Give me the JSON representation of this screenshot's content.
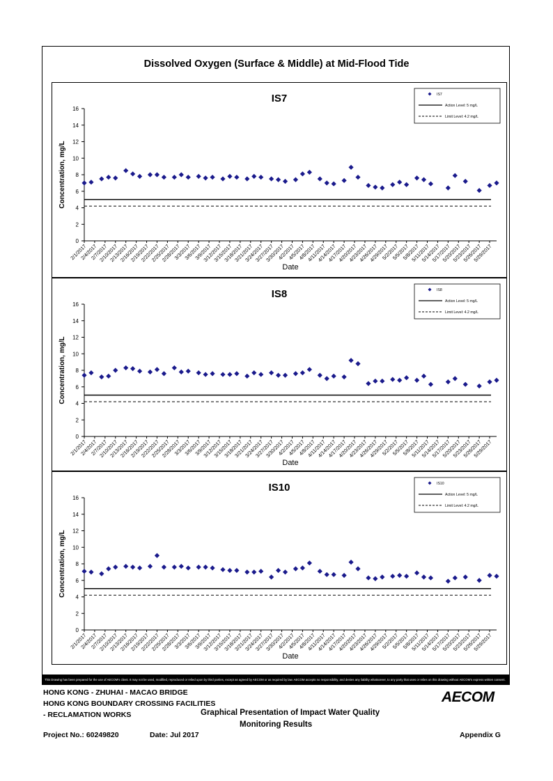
{
  "main_title": "Dissolved Oxygen (Surface & Middle) at Mid-Flood Tide",
  "axis": {
    "ylabel": "Concentration, mg/L",
    "xlabel": "Date",
    "ylim": [
      0,
      16
    ],
    "yticks": [
      0,
      2,
      4,
      6,
      8,
      10,
      12,
      14,
      16
    ]
  },
  "x_tick_labels": [
    "2/1/2017",
    "2/4/2017",
    "2/7/2017",
    "2/10/2017",
    "2/13/2017",
    "2/16/2017",
    "2/19/2017",
    "2/22/2017",
    "2/25/2017",
    "2/28/2017",
    "3/3/2017",
    "3/6/2017",
    "3/9/2017",
    "3/12/2017",
    "3/15/2017",
    "3/18/2017",
    "3/21/2017",
    "3/24/2017",
    "3/27/2017",
    "3/30/2017",
    "4/2/2017",
    "4/5/2017",
    "4/8/2017",
    "4/11/2017",
    "4/14/2017",
    "4/17/2017",
    "4/20/2017",
    "4/23/2017",
    "4/26/2017",
    "4/29/2017",
    "5/2/2017",
    "5/5/2017",
    "5/8/2017",
    "5/11/2017",
    "5/14/2017",
    "5/17/2017",
    "5/20/2017",
    "5/23/2017",
    "5/26/2017",
    "5/29/2017"
  ],
  "legend": {
    "action": "Action Level: 5 mg/L",
    "limit": "Limit Level: 4.2 mg/L"
  },
  "colors": {
    "points": "#1a1a8c",
    "lines": "#000000"
  },
  "chart_data": [
    {
      "type": "scatter",
      "title": "IS7",
      "xlabel": "Date",
      "ylabel": "Concentration, mg/L",
      "ylim": [
        0,
        16
      ],
      "legend_position": "top-right",
      "series": [
        {
          "name": "IS7",
          "x": [
            "2/1/2017",
            "2/3/2017",
            "2/6/2017",
            "2/8/2017",
            "2/10/2017",
            "2/13/2017",
            "2/15/2017",
            "2/17/2017",
            "2/20/2017",
            "2/22/2017",
            "2/24/2017",
            "2/27/2017",
            "3/1/2017",
            "3/3/2017",
            "3/6/2017",
            "3/8/2017",
            "3/10/2017",
            "3/13/2017",
            "3/15/2017",
            "3/17/2017",
            "3/20/2017",
            "3/22/2017",
            "3/24/2017",
            "3/27/2017",
            "3/29/2017",
            "3/31/2017",
            "4/3/2017",
            "4/5/2017",
            "4/7/2017",
            "4/10/2017",
            "4/12/2017",
            "4/14/2017",
            "4/17/2017",
            "4/19/2017",
            "4/21/2017",
            "4/24/2017",
            "4/26/2017",
            "4/28/2017",
            "5/1/2017",
            "5/3/2017",
            "5/5/2017",
            "5/8/2017",
            "5/10/2017",
            "5/12/2017",
            "5/17/2017",
            "5/19/2017",
            "5/22/2017",
            "5/26/2017",
            "5/29/2017",
            "5/31/2017"
          ],
          "values": [
            7.0,
            7.1,
            7.5,
            7.7,
            7.6,
            8.5,
            8.1,
            7.8,
            8.0,
            8.0,
            7.7,
            7.7,
            8.0,
            7.7,
            7.8,
            7.6,
            7.7,
            7.5,
            7.8,
            7.7,
            7.5,
            7.8,
            7.7,
            7.5,
            7.4,
            7.2,
            7.4,
            8.1,
            8.3,
            7.5,
            7.0,
            6.9,
            7.3,
            8.9,
            7.7,
            6.7,
            6.5,
            6.4,
            6.8,
            7.1,
            6.8,
            7.6,
            7.4,
            6.9,
            6.4,
            7.9,
            7.2,
            6.1,
            6.7,
            7.0
          ]
        }
      ],
      "reference_lines": [
        {
          "name": "Action Level: 5 mg/L",
          "value": 5,
          "style": "solid"
        },
        {
          "name": "Limit Level: 4.2 mg/L",
          "value": 4.2,
          "style": "dashed"
        }
      ]
    },
    {
      "type": "scatter",
      "title": "IS8",
      "xlabel": "Date",
      "ylabel": "Concentration, mg/L",
      "ylim": [
        0,
        16
      ],
      "legend_position": "top-right",
      "series": [
        {
          "name": "IS8",
          "x": [
            "2/1/2017",
            "2/3/2017",
            "2/6/2017",
            "2/8/2017",
            "2/10/2017",
            "2/13/2017",
            "2/15/2017",
            "2/17/2017",
            "2/20/2017",
            "2/22/2017",
            "2/24/2017",
            "2/27/2017",
            "3/1/2017",
            "3/3/2017",
            "3/6/2017",
            "3/8/2017",
            "3/10/2017",
            "3/13/2017",
            "3/15/2017",
            "3/17/2017",
            "3/20/2017",
            "3/22/2017",
            "3/24/2017",
            "3/27/2017",
            "3/29/2017",
            "3/31/2017",
            "4/3/2017",
            "4/5/2017",
            "4/7/2017",
            "4/10/2017",
            "4/12/2017",
            "4/14/2017",
            "4/17/2017",
            "4/19/2017",
            "4/21/2017",
            "4/24/2017",
            "4/26/2017",
            "4/28/2017",
            "5/1/2017",
            "5/3/2017",
            "5/5/2017",
            "5/8/2017",
            "5/10/2017",
            "5/12/2017",
            "5/17/2017",
            "5/19/2017",
            "5/22/2017",
            "5/26/2017",
            "5/29/2017",
            "5/31/2017"
          ],
          "values": [
            7.4,
            7.7,
            7.2,
            7.3,
            8.0,
            8.3,
            8.2,
            7.9,
            7.8,
            8.1,
            7.6,
            8.3,
            7.8,
            7.9,
            7.7,
            7.5,
            7.6,
            7.5,
            7.5,
            7.6,
            7.3,
            7.7,
            7.5,
            7.7,
            7.4,
            7.4,
            7.6,
            7.7,
            8.1,
            7.4,
            7.0,
            7.3,
            7.2,
            9.2,
            8.8,
            6.4,
            6.7,
            6.7,
            6.9,
            6.8,
            7.1,
            6.8,
            7.3,
            6.3,
            6.6,
            7.0,
            6.3,
            6.1,
            6.6,
            6.8
          ]
        }
      ],
      "reference_lines": [
        {
          "name": "Action Level: 5 mg/L",
          "value": 5,
          "style": "solid"
        },
        {
          "name": "Limit Level: 4.2 mg/L",
          "value": 4.2,
          "style": "dashed"
        }
      ]
    },
    {
      "type": "scatter",
      "title": "IS10",
      "xlabel": "Date",
      "ylabel": "Concentration, mg/L",
      "ylim": [
        0,
        16
      ],
      "legend_position": "top-right",
      "series": [
        {
          "name": "IS10",
          "x": [
            "2/1/2017",
            "2/3/2017",
            "2/6/2017",
            "2/8/2017",
            "2/10/2017",
            "2/13/2017",
            "2/15/2017",
            "2/17/2017",
            "2/20/2017",
            "2/22/2017",
            "2/24/2017",
            "2/27/2017",
            "3/1/2017",
            "3/3/2017",
            "3/6/2017",
            "3/8/2017",
            "3/10/2017",
            "3/13/2017",
            "3/15/2017",
            "3/17/2017",
            "3/20/2017",
            "3/22/2017",
            "3/24/2017",
            "3/27/2017",
            "3/29/2017",
            "3/31/2017",
            "4/3/2017",
            "4/5/2017",
            "4/7/2017",
            "4/10/2017",
            "4/12/2017",
            "4/14/2017",
            "4/17/2017",
            "4/19/2017",
            "4/21/2017",
            "4/24/2017",
            "4/26/2017",
            "4/28/2017",
            "5/1/2017",
            "5/3/2017",
            "5/5/2017",
            "5/8/2017",
            "5/10/2017",
            "5/12/2017",
            "5/17/2017",
            "5/19/2017",
            "5/22/2017",
            "5/26/2017",
            "5/29/2017",
            "5/31/2017"
          ],
          "values": [
            7.1,
            7.0,
            6.8,
            7.4,
            7.6,
            7.7,
            7.6,
            7.5,
            7.7,
            9.0,
            7.6,
            7.6,
            7.7,
            7.5,
            7.6,
            7.6,
            7.5,
            7.3,
            7.2,
            7.2,
            7.0,
            7.0,
            7.1,
            6.4,
            7.2,
            7.0,
            7.4,
            7.5,
            8.1,
            7.1,
            6.7,
            6.7,
            6.6,
            8.2,
            7.4,
            6.3,
            6.2,
            6.4,
            6.5,
            6.6,
            6.5,
            6.9,
            6.4,
            6.3,
            5.9,
            6.3,
            6.4,
            6.0,
            6.6,
            6.5
          ]
        }
      ],
      "reference_lines": [
        {
          "name": "Action Level: 5 mg/L",
          "value": 5,
          "style": "solid"
        },
        {
          "name": "Limit Level: 4.2 mg/L",
          "value": 4.2,
          "style": "dashed"
        }
      ]
    }
  ],
  "disclaimer": "This Drawing has been prepared for the use of AECOM's client. It may not be used, modified, reproduced or relied upon by third parties, except as agreed by AECOM or as required by law. AECOM accepts no responsibility, and denies any liability whatsoever, to any party that uses or relies on this drawing without AECOM's express written consent.",
  "footer": {
    "project_line1": "HONG KONG - ZHUHAI - MACAO BRIDGE",
    "project_line2": "HONG KONG BOUNDARY CROSSING FACILITIES",
    "project_line3": "- RECLAMATION WORKS",
    "report_title_line1": "Graphical Presentation of Impact Water Quality",
    "report_title_line2": "Monitoring Results",
    "project_no": "Project No.: 60249820",
    "date": "Date: Jul 2017",
    "appendix": "Appendix G",
    "logo": "AECOM"
  }
}
